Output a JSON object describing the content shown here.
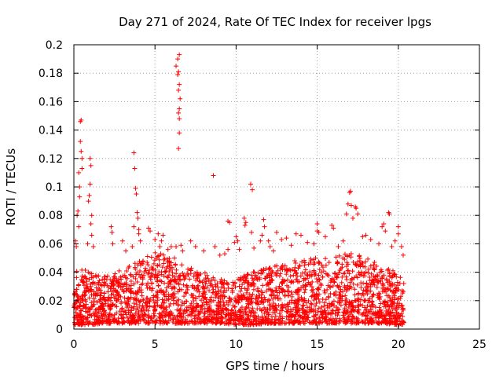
{
  "chart_data": {
    "type": "scatter",
    "title": "Day 271 of 2024, Rate Of TEC Index for receiver lpgs",
    "xlabel": "GPS time / hours",
    "ylabel": "ROTI / TECUs",
    "xlim": [
      0,
      25
    ],
    "ylim": [
      0,
      0.2
    ],
    "xticks": [
      0,
      5,
      10,
      15,
      20,
      25
    ],
    "xtick_labels": [
      "0",
      "5",
      "10",
      "15",
      "20",
      "25"
    ],
    "yticks": [
      0,
      0.02,
      0.04,
      0.06,
      0.08,
      0.1,
      0.12,
      0.14,
      0.16,
      0.18,
      0.2
    ],
    "ytick_labels": [
      "0",
      "0.02",
      "0.04",
      "0.06",
      "0.08",
      "0.1",
      "0.12",
      "0.14",
      "0.16",
      "0.18",
      "0.2"
    ],
    "grid": true,
    "marker": "+",
    "color": "#ff0000",
    "series": [
      {
        "name": "ROTI",
        "points": [
          [
            0.1,
            0.062
          ],
          [
            0.15,
            0.058
          ],
          [
            0.2,
            0.08
          ],
          [
            0.25,
            0.083
          ],
          [
            0.3,
            0.11
          ],
          [
            0.35,
            0.1
          ],
          [
            0.4,
            0.146
          ],
          [
            0.45,
            0.147
          ],
          [
            0.4,
            0.132
          ],
          [
            0.45,
            0.125
          ],
          [
            0.5,
            0.12
          ],
          [
            0.5,
            0.113
          ],
          [
            0.35,
            0.093
          ],
          [
            0.3,
            0.072
          ],
          [
            0.9,
            0.09
          ],
          [
            0.95,
            0.094
          ],
          [
            1.0,
            0.12
          ],
          [
            1.05,
            0.115
          ],
          [
            1.0,
            0.102
          ],
          [
            1.1,
            0.08
          ],
          [
            1.05,
            0.074
          ],
          [
            0.85,
            0.06
          ],
          [
            1.2,
            0.058
          ],
          [
            1.1,
            0.066
          ],
          [
            2.3,
            0.072
          ],
          [
            2.35,
            0.068
          ],
          [
            2.4,
            0.06
          ],
          [
            3.0,
            0.062
          ],
          [
            3.2,
            0.055
          ],
          [
            3.7,
            0.124
          ],
          [
            3.75,
            0.113
          ],
          [
            3.8,
            0.099
          ],
          [
            3.85,
            0.095
          ],
          [
            3.9,
            0.082
          ],
          [
            3.95,
            0.078
          ],
          [
            4.0,
            0.07
          ],
          [
            3.7,
            0.072
          ],
          [
            4.1,
            0.062
          ],
          [
            4.0,
            0.067
          ],
          [
            3.6,
            0.058
          ],
          [
            4.6,
            0.071
          ],
          [
            4.7,
            0.069
          ],
          [
            5.0,
            0.063
          ],
          [
            5.2,
            0.067
          ],
          [
            5.4,
            0.062
          ],
          [
            5.5,
            0.066
          ],
          [
            5.3,
            0.058
          ],
          [
            5.8,
            0.056
          ],
          [
            6.0,
            0.058
          ],
          [
            6.3,
            0.185
          ],
          [
            6.4,
            0.19
          ],
          [
            6.5,
            0.193
          ],
          [
            6.45,
            0.181
          ],
          [
            6.4,
            0.179
          ],
          [
            6.5,
            0.172
          ],
          [
            6.45,
            0.168
          ],
          [
            6.55,
            0.162
          ],
          [
            6.5,
            0.155
          ],
          [
            6.45,
            0.152
          ],
          [
            6.5,
            0.148
          ],
          [
            6.5,
            0.138
          ],
          [
            6.45,
            0.127
          ],
          [
            6.3,
            0.058
          ],
          [
            6.6,
            0.059
          ],
          [
            6.7,
            0.055
          ],
          [
            6.2,
            0.05
          ],
          [
            7.2,
            0.062
          ],
          [
            7.5,
            0.058
          ],
          [
            8.0,
            0.055
          ],
          [
            8.6,
            0.108
          ],
          [
            8.7,
            0.058
          ],
          [
            9.0,
            0.052
          ],
          [
            9.3,
            0.053
          ],
          [
            9.5,
            0.076
          ],
          [
            9.6,
            0.075
          ],
          [
            9.5,
            0.056
          ],
          [
            9.9,
            0.061
          ],
          [
            10.0,
            0.065
          ],
          [
            10.1,
            0.062
          ],
          [
            10.2,
            0.056
          ],
          [
            10.5,
            0.078
          ],
          [
            10.6,
            0.075
          ],
          [
            10.55,
            0.073
          ],
          [
            10.9,
            0.102
          ],
          [
            11.0,
            0.098
          ],
          [
            10.95,
            0.068
          ],
          [
            11.1,
            0.057
          ],
          [
            11.5,
            0.062
          ],
          [
            11.6,
            0.066
          ],
          [
            11.7,
            0.077
          ],
          [
            11.75,
            0.072
          ],
          [
            12.0,
            0.062
          ],
          [
            12.1,
            0.058
          ],
          [
            12.3,
            0.055
          ],
          [
            12.5,
            0.068
          ],
          [
            12.8,
            0.063
          ],
          [
            13.1,
            0.064
          ],
          [
            13.4,
            0.059
          ],
          [
            13.7,
            0.067
          ],
          [
            14.0,
            0.066
          ],
          [
            14.4,
            0.061
          ],
          [
            14.8,
            0.06
          ],
          [
            15.0,
            0.069
          ],
          [
            15.0,
            0.074
          ],
          [
            15.1,
            0.068
          ],
          [
            15.5,
            0.065
          ],
          [
            15.9,
            0.073
          ],
          [
            16.0,
            0.071
          ],
          [
            16.3,
            0.058
          ],
          [
            16.6,
            0.062
          ],
          [
            16.8,
            0.081
          ],
          [
            16.9,
            0.088
          ],
          [
            17.0,
            0.096
          ],
          [
            17.05,
            0.097
          ],
          [
            17.1,
            0.087
          ],
          [
            17.2,
            0.078
          ],
          [
            17.35,
            0.086
          ],
          [
            17.4,
            0.085
          ],
          [
            17.5,
            0.081
          ],
          [
            17.8,
            0.065
          ],
          [
            18.0,
            0.066
          ],
          [
            18.3,
            0.063
          ],
          [
            18.8,
            0.06
          ],
          [
            19.0,
            0.072
          ],
          [
            19.1,
            0.074
          ],
          [
            19.2,
            0.069
          ],
          [
            19.4,
            0.082
          ],
          [
            19.45,
            0.081
          ],
          [
            19.6,
            0.058
          ],
          [
            19.8,
            0.062
          ],
          [
            20.0,
            0.072
          ],
          [
            20.0,
            0.067
          ],
          [
            20.2,
            0.058
          ],
          [
            20.3,
            0.052
          ]
        ],
        "dense_band": {
          "x_range": [
            0.0,
            20.35
          ],
          "description": "dense cloud of samples between ROTI 0.003 and about 0.05",
          "envelope": [
            [
              0,
              0.003,
              0.045
            ],
            [
              1,
              0.003,
              0.04
            ],
            [
              2,
              0.004,
              0.038
            ],
            [
              3,
              0.004,
              0.042
            ],
            [
              4,
              0.004,
              0.048
            ],
            [
              5,
              0.004,
              0.055
            ],
            [
              6,
              0.004,
              0.05
            ],
            [
              7,
              0.004,
              0.045
            ],
            [
              8,
              0.004,
              0.04
            ],
            [
              9,
              0.004,
              0.035
            ],
            [
              10,
              0.003,
              0.035
            ],
            [
              11,
              0.003,
              0.04
            ],
            [
              12,
              0.004,
              0.045
            ],
            [
              13,
              0.004,
              0.045
            ],
            [
              14,
              0.004,
              0.05
            ],
            [
              15,
              0.004,
              0.05
            ],
            [
              16,
              0.004,
              0.05
            ],
            [
              17,
              0.004,
              0.055
            ],
            [
              18,
              0.004,
              0.05
            ],
            [
              19,
              0.004,
              0.045
            ],
            [
              20,
              0.003,
              0.04
            ],
            [
              20.35,
              0.003,
              0.035
            ]
          ]
        }
      }
    ]
  }
}
